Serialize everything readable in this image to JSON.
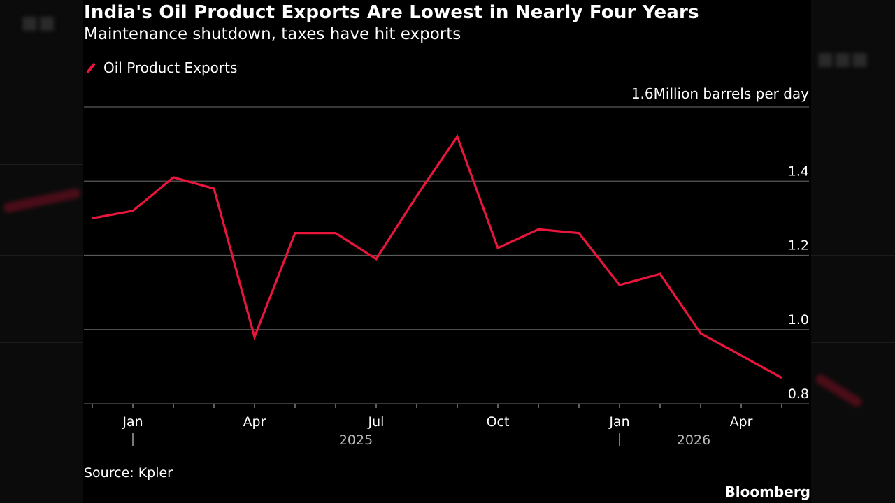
{
  "chart_data": {
    "type": "line",
    "title": "India's Oil Product Exports Are Lowest in Nearly Four Years",
    "subtitle": "Maintenance shutdown, taxes have hit exports",
    "ylabel": "Million barrels per day",
    "unit_tick_value": "1.6",
    "ylim": [
      0.8,
      1.6
    ],
    "y_ticks": [
      "1.4",
      "1.2",
      "1.0",
      "0.8"
    ],
    "x_ticks": [
      "Jan",
      "Apr",
      "Jul",
      "Oct",
      "Jan",
      "Apr"
    ],
    "year_labels": [
      "2025",
      "2026"
    ],
    "grid": true,
    "legend_position": "top-left",
    "series": [
      {
        "name": "Oil Product Exports",
        "color": "#e8163c",
        "x": [
          "2024-12",
          "2025-01",
          "2025-02",
          "2025-03",
          "2025-04",
          "2025-05",
          "2025-06",
          "2025-07",
          "2025-08",
          "2025-09",
          "2025-10",
          "2025-11",
          "2025-12",
          "2026-01",
          "2026-02",
          "2026-03",
          "2026-04",
          "2026-05"
        ],
        "values": [
          1.3,
          1.32,
          1.41,
          1.38,
          0.98,
          1.26,
          1.26,
          1.19,
          1.36,
          1.52,
          1.22,
          1.27,
          1.26,
          1.12,
          1.15,
          0.99,
          0.93,
          0.87
        ]
      }
    ]
  },
  "source": "Source: Kpler",
  "brand": "Bloomberg"
}
